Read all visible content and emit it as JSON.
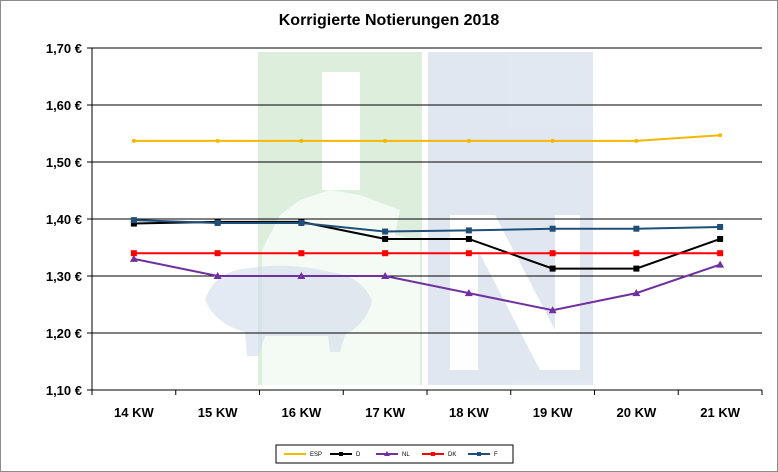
{
  "chart_data": {
    "type": "line",
    "title": "Korrigierte Notierungen 2018",
    "xlabel": "",
    "ylabel": "",
    "categories": [
      "14 KW",
      "15 KW",
      "16 KW",
      "17 KW",
      "18 KW",
      "19 KW",
      "20 KW",
      "21 KW"
    ],
    "yticks": [
      "1,10 €",
      "1,20 €",
      "1,30 €",
      "1,40 €",
      "1,50 €",
      "1,60 €",
      "1,70 €"
    ],
    "ylim": [
      1.1,
      1.7
    ],
    "grid": true,
    "legend": "bottom",
    "series": [
      {
        "name": "ESP",
        "color": "#F5B800",
        "marker": "none",
        "values": [
          1.537,
          1.537,
          1.537,
          1.537,
          1.537,
          1.537,
          1.537,
          1.547
        ]
      },
      {
        "name": "D",
        "color": "#000000",
        "marker": "square",
        "values": [
          1.392,
          1.395,
          1.395,
          1.365,
          1.365,
          1.313,
          1.313,
          1.365
        ]
      },
      {
        "name": "NL",
        "color": "#7030A0",
        "marker": "triangle",
        "values": [
          1.33,
          1.3,
          1.3,
          1.3,
          1.27,
          1.24,
          1.27,
          1.32
        ]
      },
      {
        "name": "DK",
        "color": "#FF0000",
        "marker": "square",
        "values": [
          1.34,
          1.34,
          1.34,
          1.34,
          1.34,
          1.34,
          1.34,
          1.34
        ]
      },
      {
        "name": "F",
        "color": "#1F4E79",
        "marker": "square",
        "values": [
          1.398,
          1.393,
          1.393,
          1.378,
          1.38,
          1.383,
          1.383,
          1.386
        ]
      }
    ]
  }
}
